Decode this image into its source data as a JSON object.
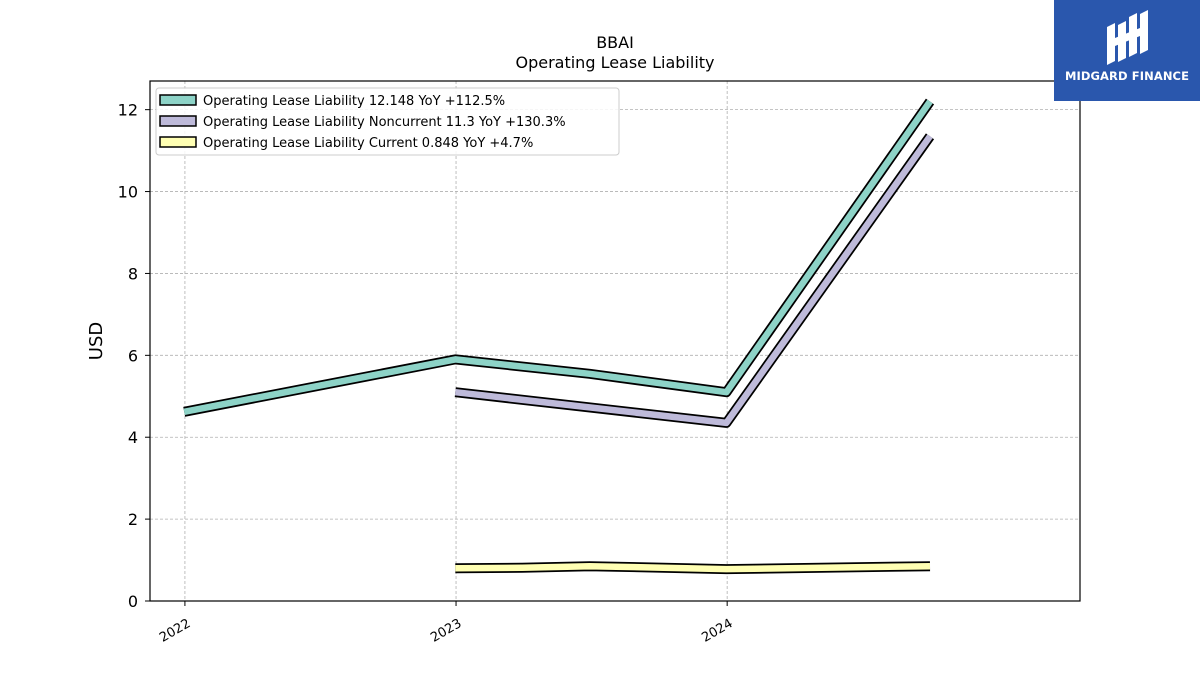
{
  "brand": {
    "name": "MIDGARD FINANCE",
    "color": "#2a57ad"
  },
  "chart_data": {
    "type": "line",
    "title": "BBAI",
    "subtitle": "Operating Lease Liability",
    "xlabel": "",
    "ylabel": "USD",
    "xlim": [
      "2021-11-15",
      "2025-04-20"
    ],
    "ylim": [
      0,
      12.7
    ],
    "x_ticks": [
      "2022",
      "2023",
      "2024"
    ],
    "x_tick_dates": [
      "2022-01-01",
      "2023-01-01",
      "2024-01-01"
    ],
    "y_ticks": [
      0,
      2,
      4,
      6,
      8,
      10,
      12
    ],
    "grid": true,
    "legend_position": "top-left",
    "series": [
      {
        "name": "Operating Lease Liability",
        "legend_label": "Operating Lease Liability  12.148 YoY +112.5%",
        "color": "#8dd3c7",
        "x": [
          "2021-12-31",
          "2022-12-31",
          "2023-06-30",
          "2023-12-31",
          "2024-09-30"
        ],
        "y": [
          4.62,
          5.9,
          5.55,
          5.1,
          12.2
        ]
      },
      {
        "name": "Operating Lease Liability Noncurrent",
        "legend_label": "Operating Lease Liability Noncurrent  11.3 YoY +130.3%",
        "color": "#bebada",
        "x": [
          "2022-12-31",
          "2023-12-31",
          "2024-09-30"
        ],
        "y": [
          5.1,
          4.35,
          11.35
        ]
      },
      {
        "name": "Operating Lease Liability Current",
        "legend_label": "Operating Lease Liability Current  0.848 YoY +4.7%",
        "color": "#ffffb3",
        "x": [
          "2022-12-31",
          "2023-03-31",
          "2023-06-30",
          "2023-12-31",
          "2024-09-30"
        ],
        "y": [
          0.8,
          0.81,
          0.85,
          0.78,
          0.85
        ]
      }
    ]
  }
}
